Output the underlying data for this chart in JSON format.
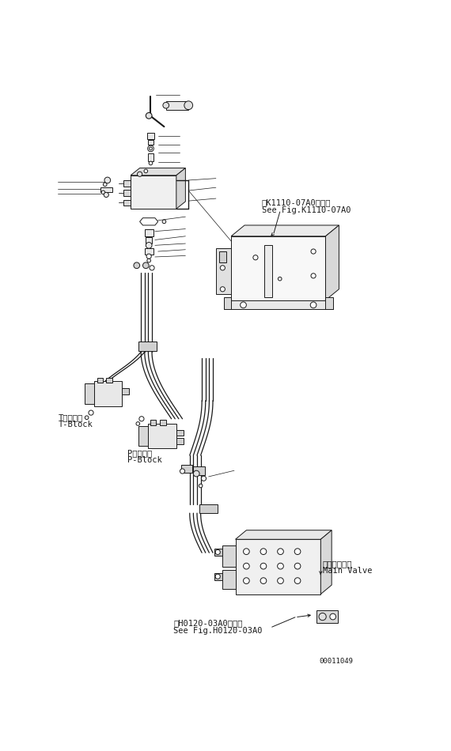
{
  "bg_color": "#ffffff",
  "fig_width": 5.7,
  "fig_height": 9.5,
  "dpi": 100,
  "part_id": "00011049",
  "labels": {
    "t_block_jp": "Tブロック",
    "t_block_en": "T-Block",
    "p_block_jp": "Pブロック",
    "p_block_en": "P-Block",
    "main_valve_jp": "メインバルブ",
    "main_valve_en": "Main Valve",
    "see_k1110_jp": "第K1110-07A0図参照",
    "see_k1110_en": "See Fig.K1110-07A0",
    "see_h0120_jp": "第H0120-03A0図参照",
    "see_h0120_en": "See Fig.H0120-03A0"
  },
  "dc": "#1a1a1a"
}
